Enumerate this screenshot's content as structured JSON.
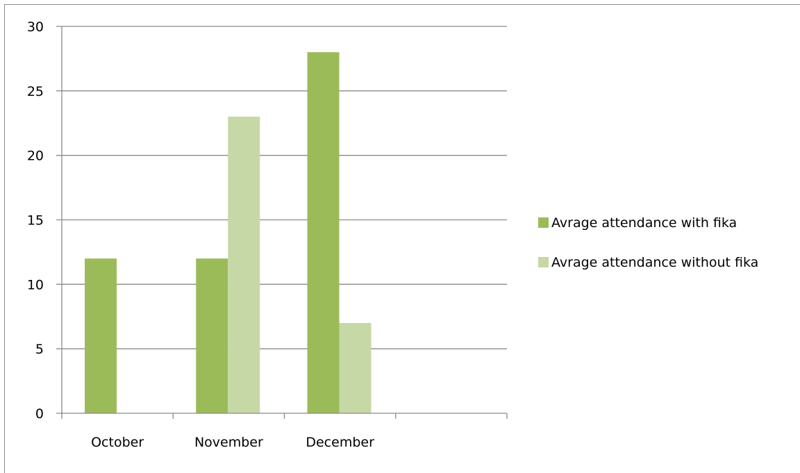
{
  "chart_data": {
    "type": "bar",
    "categories": [
      "October",
      "November",
      "December",
      ""
    ],
    "series": [
      {
        "name": "Avrage attendance with fika",
        "values": [
          12,
          12,
          28,
          null
        ],
        "color": "#9bbb59"
      },
      {
        "name": "Avrage attendance without fika",
        "values": [
          null,
          23,
          7,
          null
        ],
        "color": "#c6d8a6"
      }
    ],
    "ylim": [
      0,
      30
    ],
    "yticks": [
      0,
      5,
      10,
      15,
      20,
      25,
      30
    ],
    "ytick_labels": [
      "0",
      "5",
      "10",
      "15",
      "20",
      "25",
      "30"
    ],
    "grid": true,
    "legend": "right",
    "title": "",
    "xlabel": "",
    "ylabel": "",
    "gridline_color": "#8a8a8a",
    "axis_color": "#8a8a8a"
  }
}
